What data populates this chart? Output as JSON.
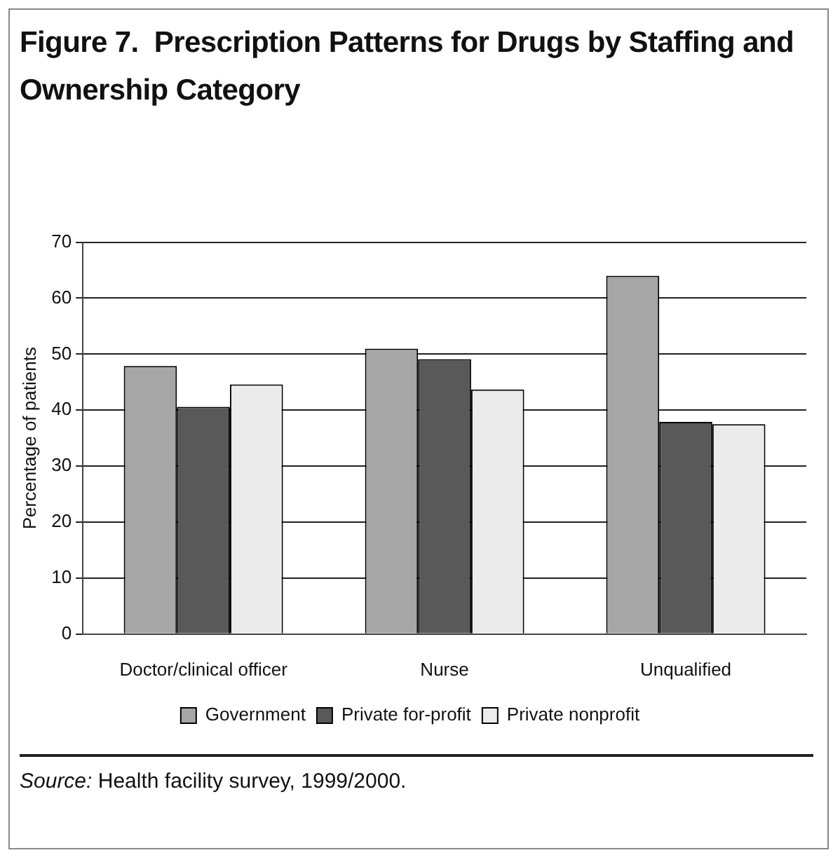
{
  "chart_data": {
    "type": "bar",
    "title": "Figure 7.  Prescription Patterns for Drugs by Staffing and Ownership Category",
    "ylabel": "Percentage of patients",
    "categories": [
      "Doctor/clinical officer",
      "Nurse",
      "Unqualified"
    ],
    "series": [
      {
        "name": "Government",
        "color": "#a6a6a6",
        "values": [
          47.9,
          51.0,
          64.0
        ]
      },
      {
        "name": "Private for-profit",
        "color": "#595959",
        "values": [
          40.6,
          49.1,
          37.9
        ]
      },
      {
        "name": "Private nonprofit",
        "color": "#ebebeb",
        "values": [
          44.6,
          43.7,
          37.5
        ]
      }
    ],
    "ylim": [
      0,
      70
    ],
    "yticks": [
      0,
      10,
      20,
      30,
      40,
      50,
      60,
      70
    ],
    "grid": "y",
    "legend": "bottom",
    "annotations": [
      "Source: Health facility survey, 1999/2000."
    ]
  }
}
